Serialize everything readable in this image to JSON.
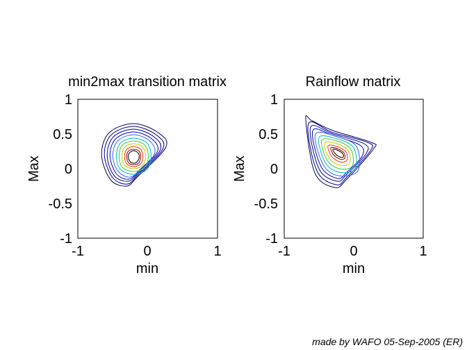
{
  "chart_data": [
    {
      "type": "contour",
      "title": "min2max transition matrix",
      "xlabel": "min",
      "ylabel": "Max",
      "xlim": [
        -1,
        1
      ],
      "ylim": [
        -1,
        1
      ],
      "xticks": [
        "-1",
        "0",
        "1"
      ],
      "yticks": [
        "1",
        "0.5",
        "0",
        "-0.5",
        "-1"
      ],
      "center": [
        -0.2,
        0.18
      ],
      "contour_colors": [
        "#000000",
        "#8b0000",
        "#ff3300",
        "#ff9900",
        "#c8c800",
        "#33cc33",
        "#00bbbb",
        "#3366ff",
        "#0000cc",
        "#000099",
        "#000080",
        "#00006e"
      ],
      "contours": [
        {
          "level": 1,
          "color": "#000000",
          "points": [
            [
              -0.28,
              0.17
            ],
            [
              -0.26,
              0.23
            ],
            [
              -0.2,
              0.26
            ],
            [
              -0.14,
              0.23
            ],
            [
              -0.12,
              0.17
            ],
            [
              -0.15,
              0.1
            ],
            [
              -0.2,
              0.08
            ],
            [
              -0.25,
              0.1
            ],
            [
              -0.28,
              0.17
            ]
          ]
        },
        {
          "level": 2,
          "color": "#8b0000",
          "points": [
            [
              -0.3,
              0.17
            ],
            [
              -0.28,
              0.25
            ],
            [
              -0.2,
              0.28
            ],
            [
              -0.12,
              0.25
            ],
            [
              -0.1,
              0.17
            ],
            [
              -0.13,
              0.08
            ],
            [
              -0.2,
              0.06
            ],
            [
              -0.27,
              0.08
            ],
            [
              -0.3,
              0.17
            ]
          ]
        },
        {
          "level": 3,
          "color": "#ff3300",
          "points": [
            [
              -0.33,
              0.18
            ],
            [
              -0.3,
              0.28
            ],
            [
              -0.2,
              0.32
            ],
            [
              -0.1,
              0.28
            ],
            [
              -0.07,
              0.18
            ],
            [
              -0.1,
              0.07
            ],
            [
              -0.2,
              0.03
            ],
            [
              -0.3,
              0.07
            ],
            [
              -0.33,
              0.18
            ]
          ]
        },
        {
          "level": 4,
          "color": "#c8c800",
          "points": [
            [
              -0.37,
              0.18
            ],
            [
              -0.33,
              0.31
            ],
            [
              -0.2,
              0.36
            ],
            [
              -0.07,
              0.31
            ],
            [
              -0.03,
              0.18
            ],
            [
              -0.07,
              0.05
            ],
            [
              -0.2,
              0.0
            ],
            [
              -0.33,
              0.05
            ],
            [
              -0.37,
              0.18
            ]
          ]
        },
        {
          "level": 5,
          "color": "#33cc33",
          "points": [
            [
              -0.41,
              0.18
            ],
            [
              -0.36,
              0.34
            ],
            [
              -0.2,
              0.4
            ],
            [
              -0.04,
              0.34
            ],
            [
              0.01,
              0.18
            ],
            [
              -0.04,
              0.02
            ],
            [
              -0.2,
              -0.04
            ],
            [
              -0.36,
              0.02
            ],
            [
              -0.41,
              0.18
            ]
          ]
        },
        {
          "level": 6,
          "color": "#00bbbb",
          "points": [
            [
              -0.45,
              0.18
            ],
            [
              -0.39,
              0.37
            ],
            [
              -0.2,
              0.44
            ],
            [
              -0.01,
              0.37
            ],
            [
              0.05,
              0.18
            ],
            [
              -0.01,
              -0.01
            ],
            [
              -0.2,
              -0.08
            ],
            [
              -0.39,
              -0.01
            ],
            [
              -0.45,
              0.18
            ]
          ]
        },
        {
          "level": 7,
          "color": "#3366ff",
          "points": [
            [
              -0.5,
              0.18
            ],
            [
              -0.43,
              0.4
            ],
            [
              -0.2,
              0.49
            ],
            [
              0.03,
              0.4
            ],
            [
              0.1,
              0.22
            ],
            [
              -0.1,
              0.0
            ],
            [
              -0.25,
              -0.12
            ],
            [
              -0.42,
              -0.04
            ],
            [
              -0.5,
              0.18
            ]
          ]
        },
        {
          "level": 8,
          "color": "#0000cc",
          "points": [
            [
              -0.54,
              0.19
            ],
            [
              -0.46,
              0.43
            ],
            [
              -0.2,
              0.53
            ],
            [
              0.06,
              0.43
            ],
            [
              0.14,
              0.25
            ],
            [
              -0.12,
              -0.03
            ],
            [
              -0.27,
              -0.15
            ],
            [
              -0.45,
              -0.07
            ],
            [
              -0.54,
              0.19
            ]
          ]
        },
        {
          "level": 9,
          "color": "#000099",
          "points": [
            [
              -0.58,
              0.19
            ],
            [
              -0.49,
              0.46
            ],
            [
              -0.2,
              0.57
            ],
            [
              0.09,
              0.46
            ],
            [
              0.18,
              0.27
            ],
            [
              -0.13,
              -0.06
            ],
            [
              -0.28,
              -0.18
            ],
            [
              -0.48,
              -0.1
            ],
            [
              -0.58,
              0.19
            ]
          ]
        },
        {
          "level": 10,
          "color": "#000080",
          "points": [
            [
              -0.62,
              0.2
            ],
            [
              -0.52,
              0.49
            ],
            [
              -0.2,
              0.61
            ],
            [
              0.12,
              0.49
            ],
            [
              0.22,
              0.29
            ],
            [
              -0.14,
              -0.09
            ],
            [
              -0.29,
              -0.22
            ],
            [
              -0.5,
              -0.13
            ],
            [
              -0.62,
              0.2
            ]
          ]
        },
        {
          "level": 11,
          "color": "#00006e",
          "points": [
            [
              -0.66,
              0.2
            ],
            [
              -0.55,
              0.52
            ],
            [
              -0.2,
              0.65
            ],
            [
              0.15,
              0.52
            ],
            [
              0.26,
              0.31
            ],
            [
              -0.15,
              -0.12
            ],
            [
              -0.3,
              -0.25
            ],
            [
              -0.53,
              -0.16
            ],
            [
              -0.66,
              0.2
            ]
          ]
        }
      ]
    },
    {
      "type": "contour",
      "title": "Rainflow matrix",
      "xlabel": "min",
      "ylabel": "Max",
      "xlim": [
        -1,
        1
      ],
      "ylim": [
        -1,
        1
      ],
      "xticks": [
        "-1",
        "0",
        "1"
      ],
      "yticks": [
        "1",
        "0.5",
        "0",
        "-0.5",
        "-1"
      ],
      "center": [
        -0.22,
        0.24
      ],
      "contours": [
        {
          "level": 1,
          "color": "#000000",
          "points": [
            [
              -0.3,
              0.28
            ],
            [
              -0.24,
              0.27
            ],
            [
              -0.16,
              0.22
            ],
            [
              -0.15,
              0.17
            ],
            [
              -0.2,
              0.17
            ],
            [
              -0.27,
              0.22
            ],
            [
              -0.3,
              0.28
            ]
          ]
        },
        {
          "level": 2,
          "color": "#8b0000",
          "points": [
            [
              -0.33,
              0.3
            ],
            [
              -0.24,
              0.29
            ],
            [
              -0.14,
              0.23
            ],
            [
              -0.13,
              0.15
            ],
            [
              -0.2,
              0.14
            ],
            [
              -0.29,
              0.2
            ],
            [
              -0.33,
              0.3
            ]
          ]
        },
        {
          "level": 3,
          "color": "#ff3300",
          "points": [
            [
              -0.37,
              0.33
            ],
            [
              -0.24,
              0.32
            ],
            [
              -0.11,
              0.24
            ],
            [
              -0.1,
              0.12
            ],
            [
              -0.2,
              0.1
            ],
            [
              -0.32,
              0.18
            ],
            [
              -0.37,
              0.33
            ]
          ]
        },
        {
          "level": 4,
          "color": "#c8c800",
          "points": [
            [
              -0.42,
              0.37
            ],
            [
              -0.24,
              0.36
            ],
            [
              -0.08,
              0.26
            ],
            [
              -0.06,
              0.08
            ],
            [
              -0.2,
              0.05
            ],
            [
              -0.35,
              0.15
            ],
            [
              -0.42,
              0.37
            ]
          ]
        },
        {
          "level": 5,
          "color": "#33cc33",
          "points": [
            [
              -0.46,
              0.41
            ],
            [
              -0.24,
              0.4
            ],
            [
              -0.04,
              0.28
            ],
            [
              -0.02,
              0.04
            ],
            [
              -0.2,
              0.0
            ],
            [
              -0.38,
              0.12
            ],
            [
              -0.46,
              0.41
            ]
          ]
        },
        {
          "level": 6,
          "color": "#00bbbb",
          "points": [
            [
              -0.5,
              0.45
            ],
            [
              -0.24,
              0.43
            ],
            [
              0.0,
              0.3
            ],
            [
              0.02,
              0.0
            ],
            [
              -0.21,
              -0.05
            ],
            [
              -0.41,
              0.09
            ],
            [
              -0.5,
              0.45
            ]
          ]
        },
        {
          "level": 7,
          "color": "#3366ff",
          "points": [
            [
              -0.55,
              0.5
            ],
            [
              -0.24,
              0.46
            ],
            [
              0.04,
              0.32
            ],
            [
              0.06,
              -0.03
            ],
            [
              -0.22,
              -0.1
            ],
            [
              -0.44,
              0.06
            ],
            [
              -0.55,
              0.5
            ]
          ]
        },
        {
          "level": 8,
          "color": "#0000cc",
          "points": [
            [
              -0.59,
              0.55
            ],
            [
              -0.3,
              0.48
            ],
            [
              0.09,
              0.34
            ],
            [
              0.12,
              0.18
            ],
            [
              -0.1,
              -0.05
            ],
            [
              -0.23,
              -0.14
            ],
            [
              -0.47,
              0.03
            ],
            [
              -0.59,
              0.55
            ]
          ]
        },
        {
          "level": 9,
          "color": "#000099",
          "points": [
            [
              -0.62,
              0.6
            ],
            [
              -0.3,
              0.5
            ],
            [
              0.15,
              0.36
            ],
            [
              0.18,
              0.22
            ],
            [
              -0.1,
              -0.08
            ],
            [
              -0.24,
              -0.18
            ],
            [
              -0.5,
              0.0
            ],
            [
              -0.62,
              0.6
            ]
          ]
        },
        {
          "level": 10,
          "color": "#000080",
          "points": [
            [
              -0.65,
              0.65
            ],
            [
              -0.3,
              0.52
            ],
            [
              0.2,
              0.38
            ],
            [
              0.24,
              0.26
            ],
            [
              -0.1,
              -0.12
            ],
            [
              -0.25,
              -0.23
            ],
            [
              -0.53,
              -0.03
            ],
            [
              -0.65,
              0.65
            ]
          ]
        },
        {
          "level": 11,
          "color": "#00006e",
          "points": [
            [
              -0.69,
              0.71
            ],
            [
              -0.6,
              0.69
            ],
            [
              -0.3,
              0.55
            ],
            [
              0.25,
              0.38
            ],
            [
              0.28,
              0.28
            ],
            [
              -0.1,
              -0.15
            ],
            [
              -0.27,
              -0.27
            ],
            [
              -0.56,
              -0.06
            ],
            [
              -0.69,
              0.71
            ]
          ]
        }
      ]
    }
  ],
  "footer": {
    "credit": "made by WAFO 05-Sep-2005 (ER)"
  }
}
